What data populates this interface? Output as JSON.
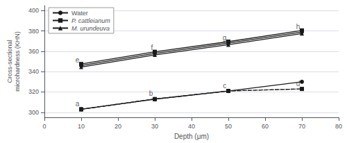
{
  "chart_data": {
    "type": "line",
    "x": [
      10,
      30,
      50,
      70
    ],
    "series": [
      {
        "name": "Water",
        "color": "#1a1a1a",
        "marker": "circle",
        "line_style": "solid",
        "values": [
          346,
          358,
          368,
          379
        ]
      },
      {
        "name": "P. cattleianum",
        "color": "#1a1a1a",
        "marker": "square",
        "line_style": "solid",
        "values": [
          347.5,
          359.5,
          369.5,
          380.5
        ]
      },
      {
        "name": "M. urundeuva",
        "color": "#1a1a1a",
        "marker": "triangle",
        "line_style": "solid",
        "values": [
          344.5,
          356.5,
          366.5,
          377.5
        ]
      },
      {
        "name": "Water",
        "color": "#1a1a1a",
        "marker": "circle",
        "line_style": "solid",
        "values": [
          303,
          313,
          321,
          330
        ]
      },
      {
        "name": "P. cattleianum",
        "color": "#1a1a1a",
        "marker": "square",
        "line_style": "dotted",
        "values": [
          303,
          313,
          321,
          323
        ]
      },
      {
        "name": "M. urundeuva",
        "color": "#1a1a1a",
        "marker": "triangle",
        "line_style": "dashed",
        "values": [
          303,
          313,
          321,
          323
        ]
      }
    ],
    "x_label": "Depth (μm)",
    "y_label": "Cross-sectional\nmicrohardness (KHN)",
    "xlim": [
      0,
      80
    ],
    "xticks": [
      0,
      10,
      20,
      30,
      40,
      50,
      60,
      70,
      80
    ],
    "ylim": [
      295,
      405
    ],
    "yticks": [
      300,
      320,
      340,
      360,
      380,
      400
    ],
    "grid": true,
    "legend": "upper left",
    "annotations": [
      {
        "text": "e",
        "x": 9.5,
        "y": 348
      },
      {
        "text": "f",
        "x": 29.5,
        "y": 360
      },
      {
        "text": "g",
        "x": 49.5,
        "y": 370
      },
      {
        "text": "h",
        "x": 69.5,
        "y": 381
      },
      {
        "text": "a",
        "x": 9.5,
        "y": 305
      },
      {
        "text": "b",
        "x": 29.5,
        "y": 315
      },
      {
        "text": "c",
        "x": 49.5,
        "y": 323
      },
      {
        "text": "d",
        "x": 69.5,
        "y": 325
      }
    ]
  }
}
